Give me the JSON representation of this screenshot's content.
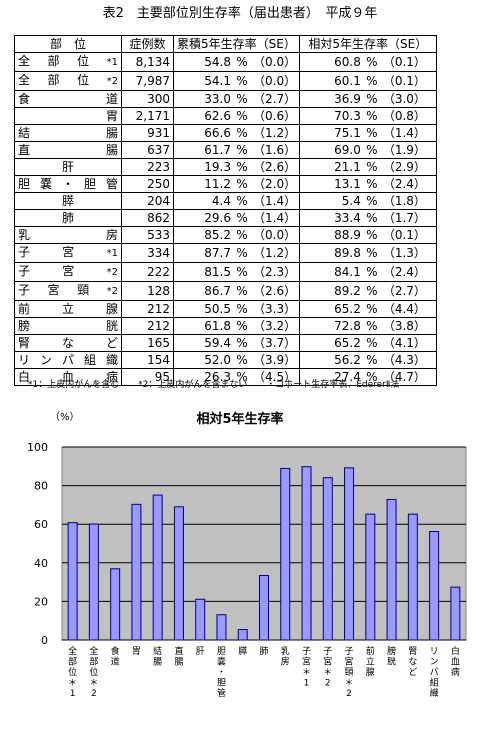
{
  "title": "表2　主要部位別生存率（届出患者）　平成９年",
  "table": {
    "headers": [
      "部　位",
      "症例数",
      "累積5年生存率（SE）",
      "相対5年生存率（SE）"
    ],
    "rows": [
      {
        "site": "全部位",
        "mark": "*1",
        "align": "j",
        "cases": "8,134",
        "cum": "54.8",
        "cum_se": "（0.0）",
        "rel": "60.8",
        "rel_se": "（0.1）"
      },
      {
        "site": "全部位",
        "mark": "*2",
        "align": "j",
        "cases": "7,987",
        "cum": "54.1",
        "cum_se": "（0.0）",
        "rel": "60.1",
        "rel_se": "（0.1）"
      },
      {
        "site": "食道",
        "mark": "",
        "align": "j",
        "cases": "300",
        "cum": "33.0",
        "cum_se": "（2.7）",
        "rel": "36.9",
        "rel_se": "（3.0）"
      },
      {
        "site": "胃",
        "mark": "",
        "align": "r",
        "cases": "2,171",
        "cum": "62.6",
        "cum_se": "（0.6）",
        "rel": "70.3",
        "rel_se": "（0.8）"
      },
      {
        "site": "結腸",
        "mark": "",
        "align": "j",
        "cases": "931",
        "cum": "66.6",
        "cum_se": "（1.2）",
        "rel": "75.1",
        "rel_se": "（1.4）"
      },
      {
        "site": "直腸",
        "mark": "",
        "align": "j",
        "cases": "637",
        "cum": "61.7",
        "cum_se": "（1.6）",
        "rel": "69.0",
        "rel_se": "（1.9）"
      },
      {
        "site": "肝",
        "mark": "",
        "align": "c",
        "cases": "223",
        "cum": "19.3",
        "cum_se": "（2.6）",
        "rel": "21.1",
        "rel_se": "（2.9）"
      },
      {
        "site": "胆嚢・胆管",
        "mark": "",
        "align": "j",
        "cases": "250",
        "cum": "11.2",
        "cum_se": "（2.0）",
        "rel": "13.1",
        "rel_se": "（2.4）"
      },
      {
        "site": "膵",
        "mark": "",
        "align": "c",
        "cases": "204",
        "cum": "4.4",
        "cum_se": "（1.4）",
        "rel": "5.4",
        "rel_se": "（1.8）"
      },
      {
        "site": "肺",
        "mark": "",
        "align": "c",
        "cases": "862",
        "cum": "29.6",
        "cum_se": "（1.4）",
        "rel": "33.4",
        "rel_se": "（1.7）"
      },
      {
        "site": "乳房",
        "mark": "",
        "align": "j",
        "cases": "533",
        "cum": "85.2",
        "cum_se": "（0.0）",
        "rel": "88.9",
        "rel_se": "（0.1）"
      },
      {
        "site": "子宮",
        "mark": "*1",
        "align": "j",
        "cases": "334",
        "cum": "87.7",
        "cum_se": "（1.2）",
        "rel": "89.8",
        "rel_se": "（1.3）"
      },
      {
        "site": "子宮",
        "mark": "*2",
        "align": "j",
        "cases": "222",
        "cum": "81.5",
        "cum_se": "（2.3）",
        "rel": "84.1",
        "rel_se": "（2.4）"
      },
      {
        "site": "子宮頸",
        "mark": "*2",
        "align": "j",
        "cases": "128",
        "cum": "86.7",
        "cum_se": "（2.6）",
        "rel": "89.2",
        "rel_se": "（2.7）"
      },
      {
        "site": "前立腺",
        "mark": "",
        "align": "j",
        "cases": "212",
        "cum": "50.5",
        "cum_se": "（3.3）",
        "rel": "65.2",
        "rel_se": "（4.4）"
      },
      {
        "site": "膀胱",
        "mark": "",
        "align": "j",
        "cases": "212",
        "cum": "61.8",
        "cum_se": "（3.2）",
        "rel": "72.8",
        "rel_se": "（3.8）"
      },
      {
        "site": "腎など",
        "mark": "",
        "align": "j",
        "cases": "165",
        "cum": "59.4",
        "cum_se": "（3.7）",
        "rel": "65.2",
        "rel_se": "（4.1）"
      },
      {
        "site": "リンパ組織",
        "mark": "",
        "align": "j",
        "cases": "154",
        "cum": "52.0",
        "cum_se": "（3.9）",
        "rel": "56.2",
        "rel_se": "（4.3）"
      },
      {
        "site": "白血病",
        "mark": "",
        "align": "j",
        "cases": "95",
        "cum": "26.3",
        "cum_se": "（4.5）",
        "rel": "27.4",
        "rel_se": "（4.7）"
      }
    ],
    "percent_sign": "%"
  },
  "notes": [
    "*1：上皮内がんを含む",
    "*2：上皮内がんを含まない",
    "・コホート生存率表、EdererⅡ法"
  ],
  "chart_data": {
    "type": "bar",
    "title": "相対5年生存率",
    "ylabel": "（%）",
    "ylim": [
      0,
      100
    ],
    "yticks": [
      0,
      20,
      40,
      60,
      80,
      100
    ],
    "grid": true,
    "bar_color": "#9999ff",
    "plot_bg": "#c0c0c0",
    "categories": [
      "全部位＊1",
      "全部位＊2",
      "食道",
      "胃",
      "結腸",
      "直腸",
      "肝",
      "胆嚢・胆管",
      "膵",
      "肺",
      "乳房",
      "子宮＊1",
      "子宮＊2",
      "子宮頸＊2",
      "前立腺",
      "膀胱",
      "腎など",
      "リンパ組織",
      "白血病"
    ],
    "values": [
      60.8,
      60.1,
      36.9,
      70.3,
      75.1,
      69.0,
      21.1,
      13.1,
      5.4,
      33.4,
      88.9,
      89.8,
      84.1,
      89.2,
      65.2,
      72.8,
      65.2,
      56.2,
      27.4
    ]
  }
}
